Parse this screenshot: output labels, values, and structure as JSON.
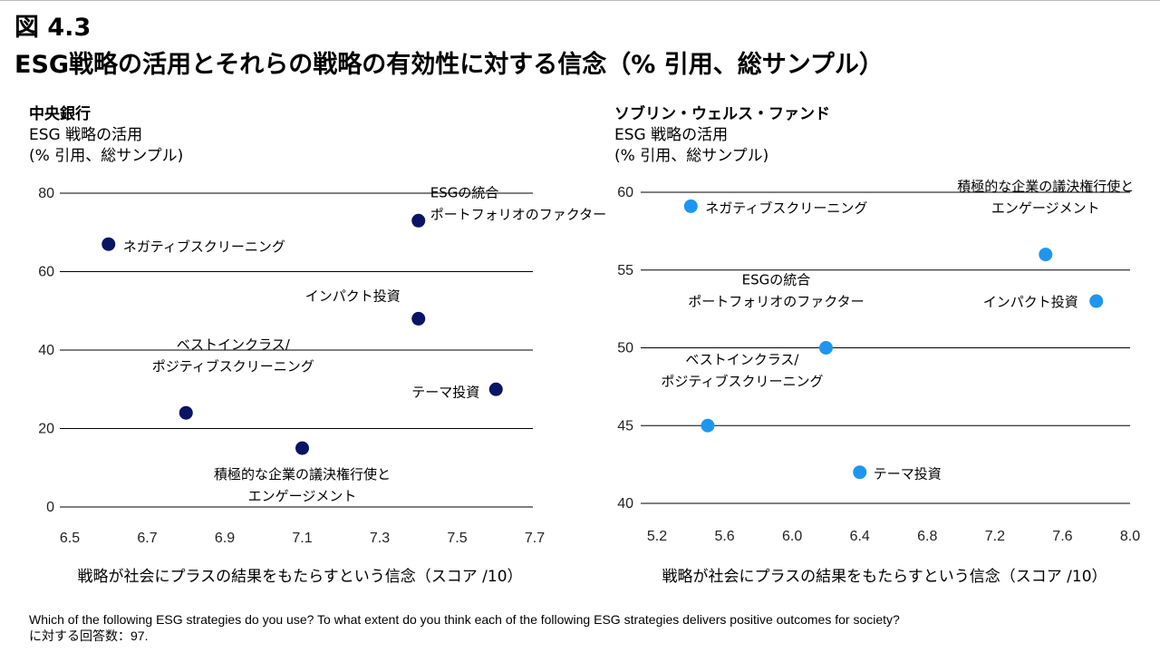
{
  "figure": {
    "number": "図 4.3",
    "title": "ESG戦略の活用とそれらの戦略の有効性に対する信念（% 引用、総サンプル）"
  },
  "footnote": {
    "line1": "Which of the following ESG strategies do you use? To what extent do you think each of the following ESG strategies delivers positive outcomes for society?",
    "line2": "に対する回答数：97."
  },
  "colors": {
    "left_points": "#0a1464",
    "right_points": "#1e96f0",
    "gridline": "#000000"
  },
  "chart_data": [
    {
      "type": "scatter",
      "title": "中央銀行",
      "ylabel_lines": [
        "ESG 戦略の活用",
        "(% 引用、総サンプル)"
      ],
      "xlabel": "戦略が社会にプラスの結果をもたらすという信念（スコア /10）",
      "xlim": [
        6.5,
        7.7
      ],
      "ylim": [
        0,
        80
      ],
      "xticks": [
        "6.5",
        "6.7",
        "6.9",
        "7.1",
        "7.3",
        "7.5",
        "7.7"
      ],
      "yticks": [
        "0",
        "20",
        "40",
        "60",
        "80"
      ],
      "points": [
        {
          "label_lines": [
            "ネガティブスクリーニング"
          ],
          "x": 6.6,
          "y": 67
        },
        {
          "label_lines": [
            "ESGの統合",
            "ポートフォリオのファクター"
          ],
          "x": 7.4,
          "y": 73
        },
        {
          "label_lines": [
            "インパクト投資"
          ],
          "x": 7.4,
          "y": 48
        },
        {
          "label_lines": [
            "テーマ投資"
          ],
          "x": 7.6,
          "y": 30
        },
        {
          "label_lines": [
            "ベストインクラス/",
            "ポジティブスクリーニング"
          ],
          "x": 6.8,
          "y": 24
        },
        {
          "label_lines": [
            "積極的な企業の議決権行使と",
            "エンゲージメント"
          ],
          "x": 7.1,
          "y": 15
        }
      ]
    },
    {
      "type": "scatter",
      "title": "ソブリン・ウェルス・ファンド",
      "ylabel_lines": [
        "ESG 戦略の活用",
        "(% 引用、総サンプル)"
      ],
      "xlabel": "戦略が社会にプラスの結果をもたらすという信念（スコア /10）",
      "xlim": [
        5.2,
        8.0
      ],
      "ylim": [
        40,
        60
      ],
      "xticks": [
        "5.2",
        "5.6",
        "6.0",
        "6.4",
        "6.8",
        "7.2",
        "7.6",
        "8.0"
      ],
      "yticks": [
        "40",
        "45",
        "50",
        "55",
        "60"
      ],
      "points": [
        {
          "label_lines": [
            "ネガティブスクリーニング"
          ],
          "x": 5.4,
          "y": 59.1
        },
        {
          "label_lines": [
            "積極的な企業の議決権行使と",
            "エンゲージメント"
          ],
          "x": 7.5,
          "y": 56
        },
        {
          "label_lines": [
            "インパクト投資"
          ],
          "x": 7.8,
          "y": 53
        },
        {
          "label_lines": [
            "ESGの統合",
            "ポートフォリオのファクター"
          ],
          "x": 6.2,
          "y": 50
        },
        {
          "label_lines": [
            "ベストインクラス/",
            "ポジティブスクリーニング"
          ],
          "x": 5.5,
          "y": 45
        },
        {
          "label_lines": [
            "テーマ投資"
          ],
          "x": 6.4,
          "y": 42
        }
      ]
    }
  ]
}
